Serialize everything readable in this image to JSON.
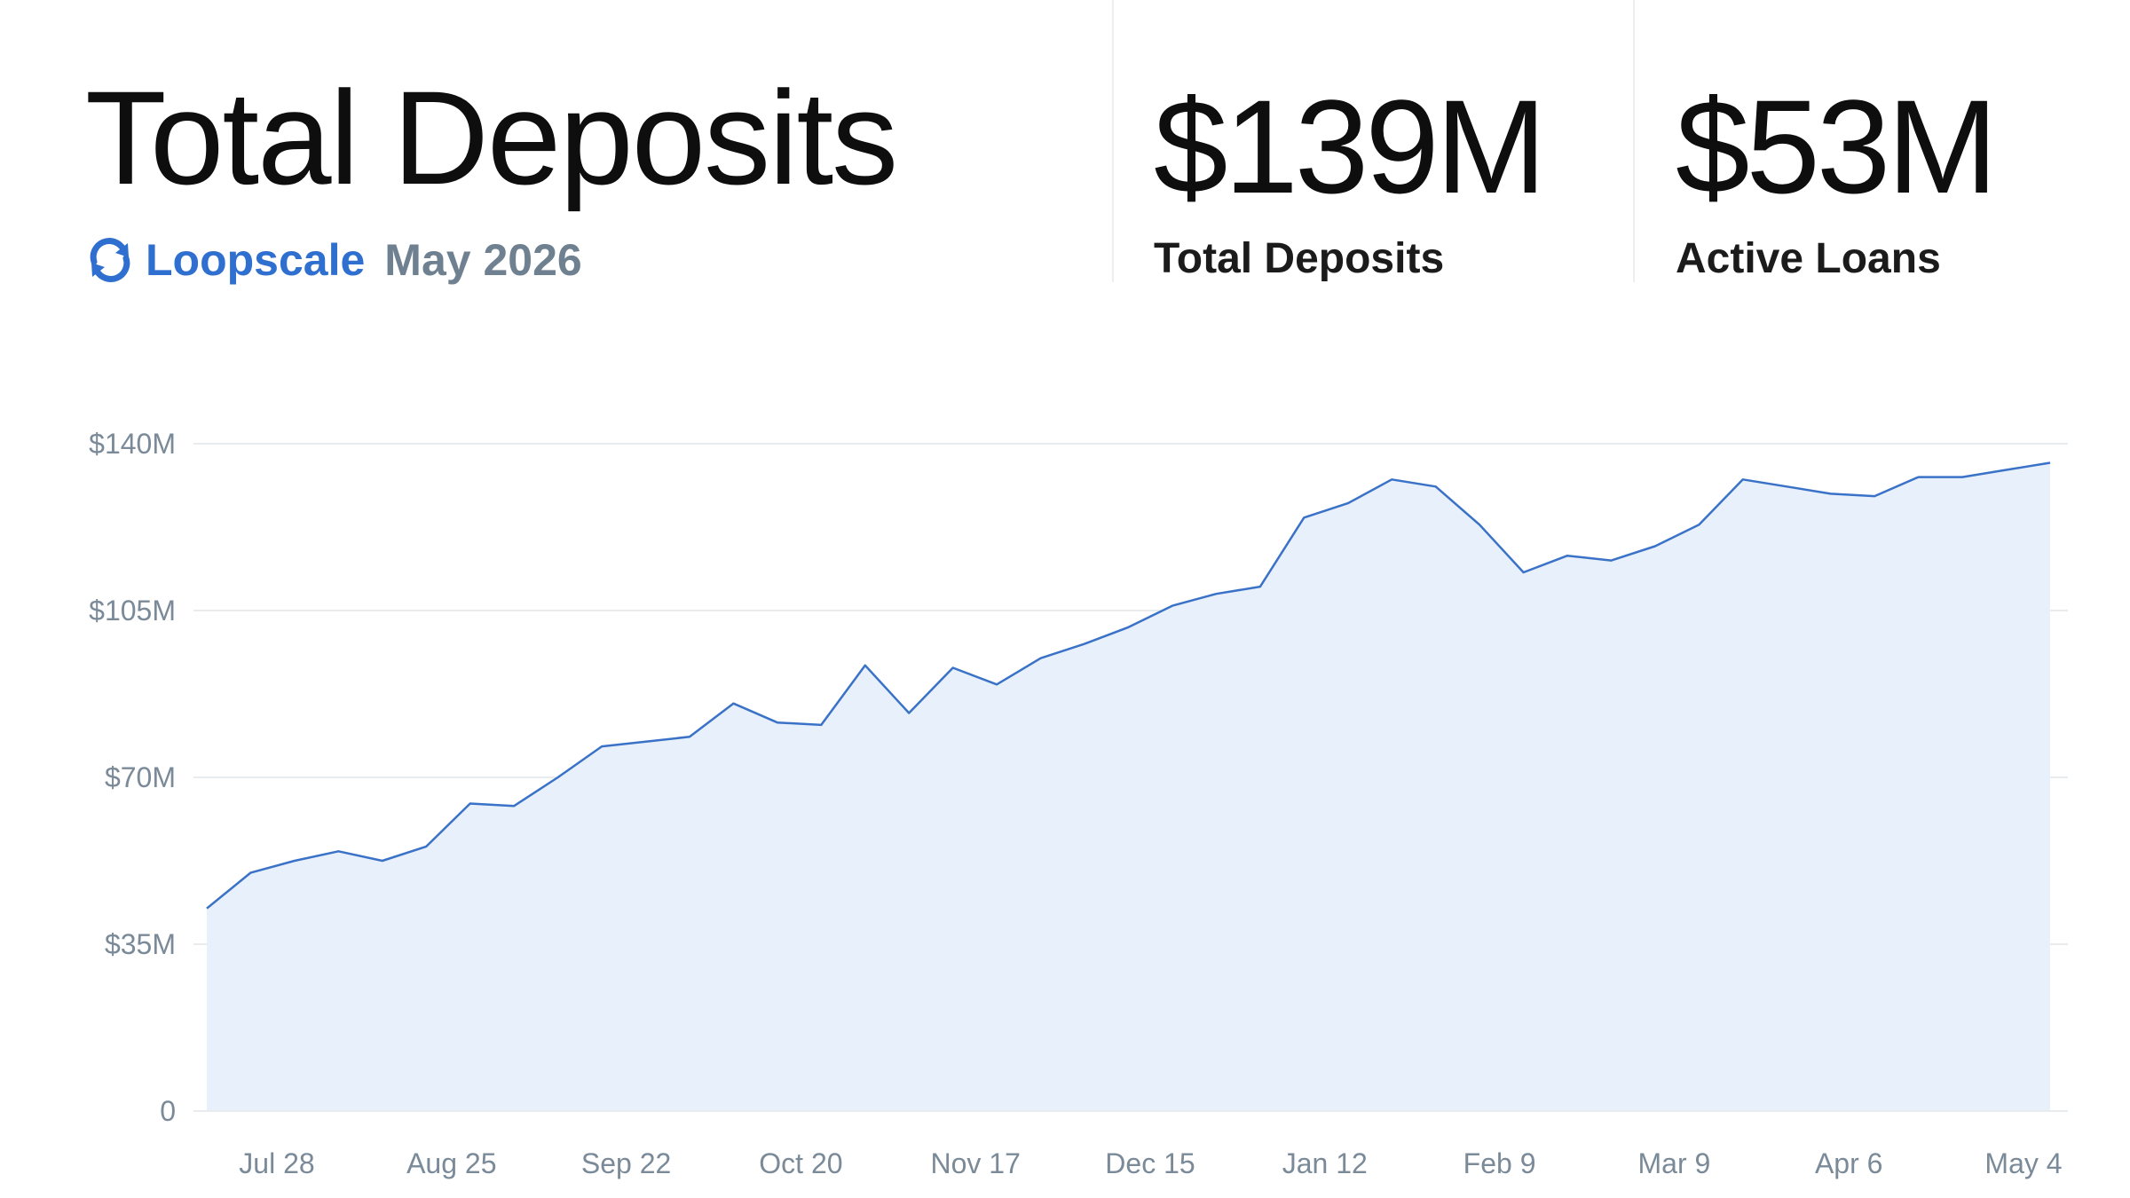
{
  "header": {
    "title": "Total Deposits",
    "brand": {
      "name": "Loopscale",
      "logo_icon": "loop-arrows-icon",
      "color": "#2f6fd0"
    },
    "date": "May 2026"
  },
  "stats": [
    {
      "value": "$139M",
      "label": "Total Deposits"
    },
    {
      "value": "$53M",
      "label": "Active Loans"
    }
  ],
  "chart_data": {
    "type": "area",
    "title": "",
    "xlabel": "",
    "ylabel": "",
    "line_color": "#3a72c8",
    "fill_color": "#e8f0fb",
    "grid": true,
    "ylim": [
      0,
      140
    ],
    "y_ticks": [
      {
        "value": 0,
        "label": "0"
      },
      {
        "value": 35,
        "label": "$35M"
      },
      {
        "value": 70,
        "label": "$70M"
      },
      {
        "value": 105,
        "label": "$105M"
      },
      {
        "value": 140,
        "label": "$140M"
      }
    ],
    "x_ticks": [
      "Jul 28",
      "Aug 25",
      "Sep 22",
      "Oct 20",
      "Nov 17",
      "Dec 15",
      "Jan 12",
      "Feb 9",
      "Mar 9",
      "Apr 6",
      "May 4"
    ],
    "values": [
      42.5,
      50,
      52.5,
      54.5,
      52.5,
      55.5,
      64.5,
      64,
      70,
      76.5,
      77.5,
      78.5,
      85.5,
      81.5,
      81,
      93.5,
      83.5,
      93,
      89.5,
      95,
      98,
      101.5,
      106,
      108.5,
      110,
      124.5,
      127.5,
      132.5,
      131,
      123,
      113,
      116.5,
      115.5,
      118.5,
      123,
      132.5,
      131,
      129.5,
      129,
      133,
      133,
      134.5,
      136
    ]
  }
}
